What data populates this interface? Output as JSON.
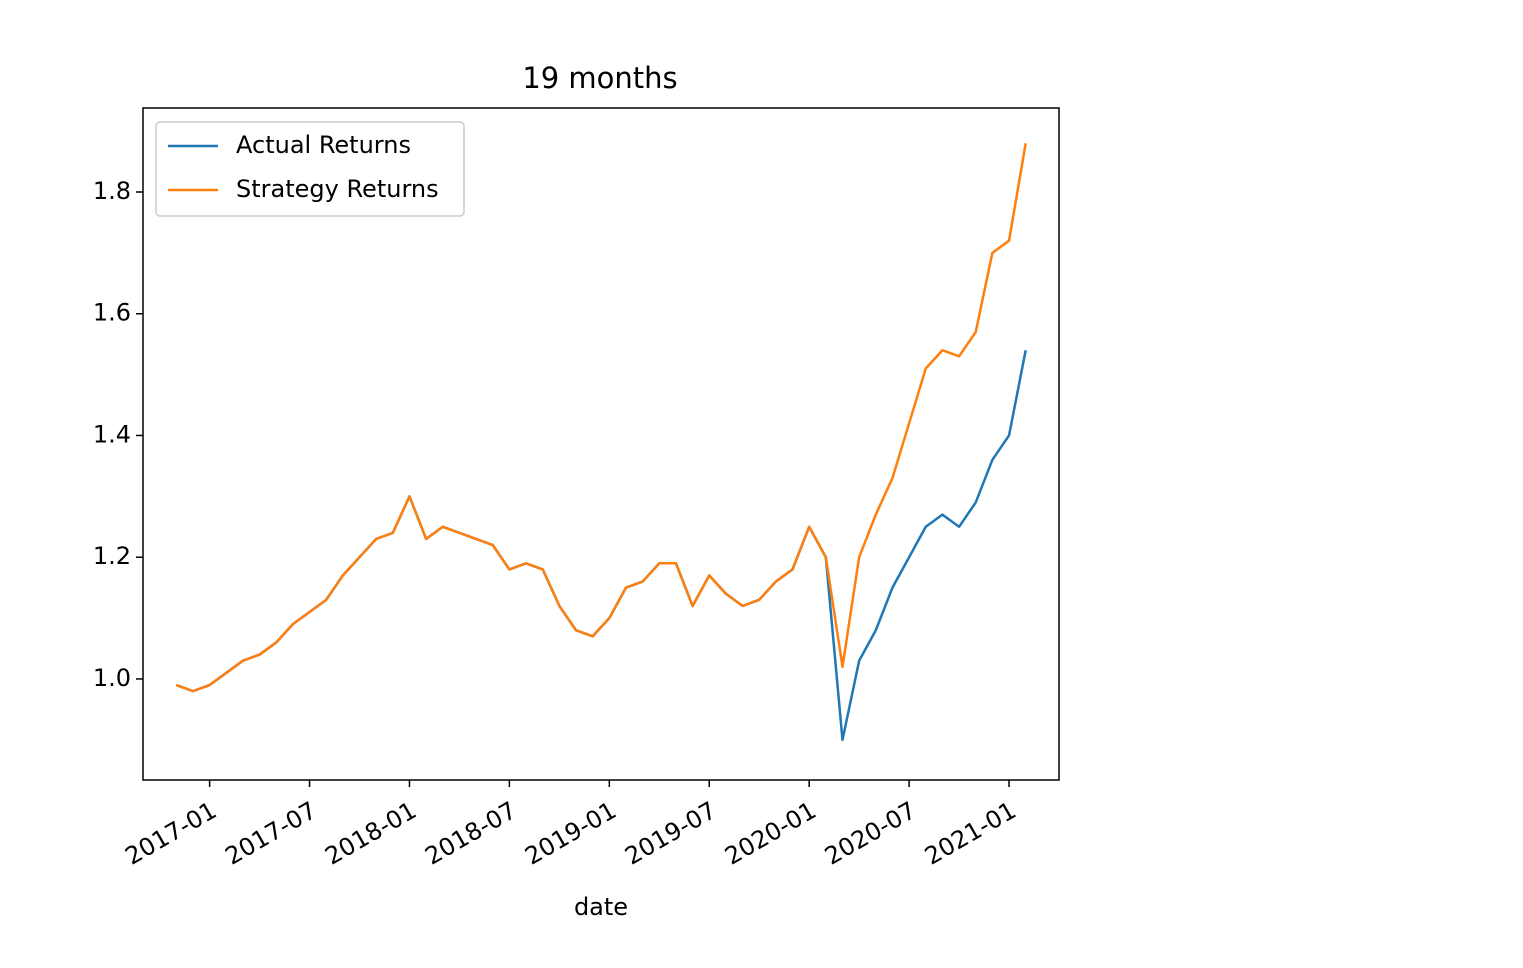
{
  "chart_data": {
    "type": "line",
    "title": "19 months",
    "x_label": "date",
    "x": [
      "2016-11",
      "2016-12",
      "2017-01",
      "2017-02",
      "2017-03",
      "2017-04",
      "2017-05",
      "2017-06",
      "2017-07",
      "2017-08",
      "2017-09",
      "2017-10",
      "2017-11",
      "2017-12",
      "2018-01",
      "2018-02",
      "2018-03",
      "2018-04",
      "2018-05",
      "2018-06",
      "2018-07",
      "2018-08",
      "2018-09",
      "2018-10",
      "2018-11",
      "2018-12",
      "2019-01",
      "2019-02",
      "2019-03",
      "2019-04",
      "2019-05",
      "2019-06",
      "2019-07",
      "2019-08",
      "2019-09",
      "2019-10",
      "2019-11",
      "2019-12",
      "2020-01",
      "2020-02",
      "2020-03",
      "2020-04",
      "2020-05",
      "2020-06",
      "2020-07",
      "2020-08",
      "2020-09",
      "2020-10",
      "2020-11",
      "2020-12",
      "2021-01",
      "2021-02"
    ],
    "series": [
      {
        "name": "Actual Returns",
        "color": "#1f77b4",
        "values": [
          0.99,
          0.98,
          0.99,
          1.01,
          1.03,
          1.04,
          1.06,
          1.09,
          1.11,
          1.13,
          1.17,
          1.2,
          1.23,
          1.24,
          1.3,
          1.23,
          1.25,
          1.24,
          1.23,
          1.22,
          1.18,
          1.19,
          1.18,
          1.12,
          1.08,
          1.07,
          1.1,
          1.15,
          1.16,
          1.19,
          1.19,
          1.12,
          1.17,
          1.14,
          1.12,
          1.13,
          1.16,
          1.18,
          1.25,
          1.2,
          0.9,
          1.03,
          1.08,
          1.15,
          1.2,
          1.25,
          1.27,
          1.25,
          1.29,
          1.36,
          1.4,
          1.54
        ]
      },
      {
        "name": "Strategy Returns",
        "color": "#ff7f0e",
        "values": [
          0.99,
          0.98,
          0.99,
          1.01,
          1.03,
          1.04,
          1.06,
          1.09,
          1.11,
          1.13,
          1.17,
          1.2,
          1.23,
          1.24,
          1.3,
          1.23,
          1.25,
          1.24,
          1.23,
          1.22,
          1.18,
          1.19,
          1.18,
          1.12,
          1.08,
          1.07,
          1.1,
          1.15,
          1.16,
          1.19,
          1.19,
          1.12,
          1.17,
          1.14,
          1.12,
          1.13,
          1.16,
          1.18,
          1.25,
          1.2,
          1.02,
          1.2,
          1.27,
          1.33,
          1.42,
          1.51,
          1.54,
          1.53,
          1.57,
          1.7,
          1.72,
          1.88
        ]
      }
    ],
    "xlim": [
      "2016-09",
      "2021-04"
    ],
    "xticks": [
      "2017-01",
      "2017-07",
      "2018-01",
      "2018-07",
      "2019-01",
      "2019-07",
      "2020-01",
      "2020-07",
      "2021-01"
    ],
    "ylim": [
      0.834,
      1.938
    ],
    "yticks": [
      {
        "value": 1,
        "label": "1.0"
      },
      1.2,
      1.4,
      1.6,
      1.8
    ],
    "legend": "upper left",
    "grid": false
  }
}
